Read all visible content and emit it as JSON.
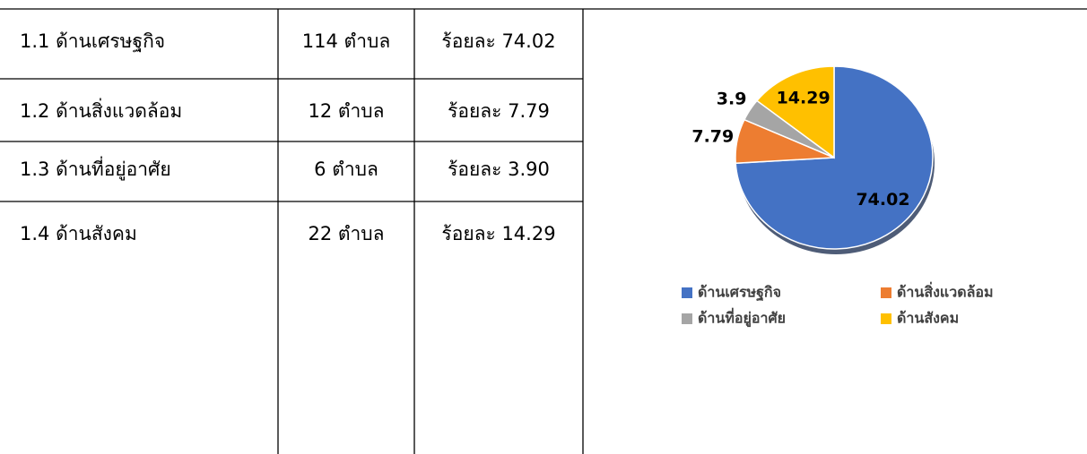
{
  "table": {
    "rows": [
      [
        "1.1 ด้านเศรษฐกิจ",
        "114  ตำบล",
        "ร้อยละ 74.02"
      ],
      [
        "1.2 ด้านสิ่งแวดล้อม",
        "12  ตำบล",
        "ร้อยละ 7.79"
      ],
      [
        "1.3 ด้านที่อยู่อาศัย",
        "6  ตำบล",
        "ร้อยละ 3.90"
      ],
      [
        "1.4 ด้านสังคม",
        "22  ตำบล",
        "ร้อยละ 14.29"
      ]
    ]
  },
  "chart_data": {
    "type": "pie",
    "categories": [
      "ด้านเศรษฐกิจ",
      "ด้านสิ่งแวดล้อม",
      "ด้านที่อยู่อาศัย",
      "ด้านสังคม"
    ],
    "values": [
      74.02,
      7.79,
      3.9,
      14.29
    ],
    "colors": [
      "#4472c4",
      "#ed7d31",
      "#a5a5a5",
      "#ffc000"
    ],
    "legend": "bottom"
  }
}
